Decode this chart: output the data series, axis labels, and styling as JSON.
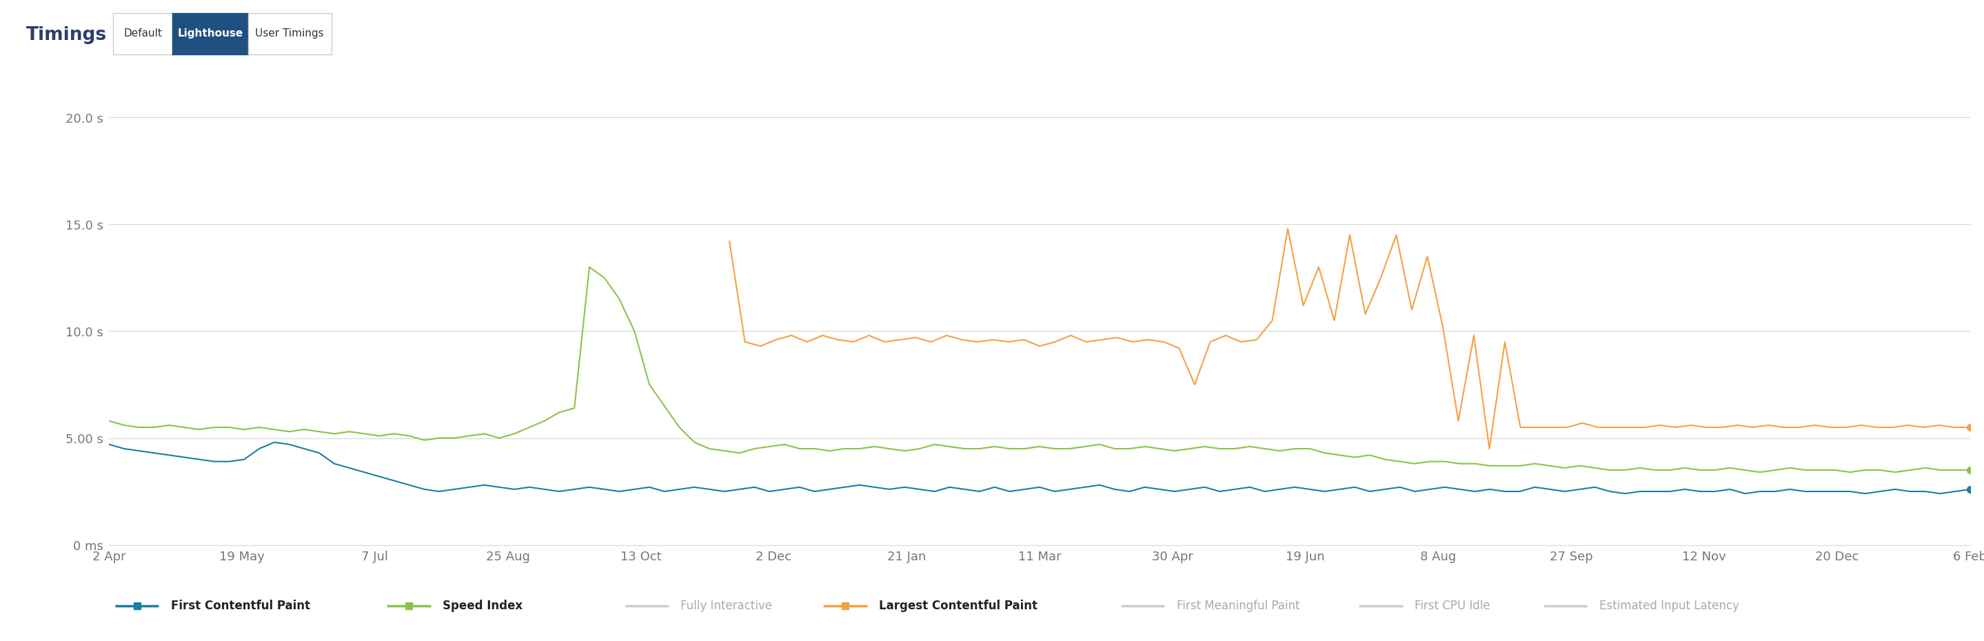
{
  "title": "Timings",
  "tab_default": "Default",
  "tab_lighthouse": "Lighthouse",
  "tab_user_timings": "User Timings",
  "background_color": "#ffffff",
  "plot_bg_color": "#ffffff",
  "grid_color": "#d8d8d8",
  "ylim": [
    0,
    21
  ],
  "yticks": [
    0,
    5,
    10,
    15,
    20
  ],
  "ytick_labels": [
    "0 ms",
    "5.00 s",
    "10.0 s",
    "15.0 s",
    "20.0 s"
  ],
  "xtick_labels": [
    "2 Apr",
    "19 May",
    "7 Jul",
    "25 Aug",
    "13 Oct",
    "2 Dec",
    "21 Jan",
    "11 Mar",
    "30 Apr",
    "19 Jun",
    "8 Aug",
    "27 Sep",
    "12 Nov",
    "20 Dec",
    "6 Feb"
  ],
  "fcp_color": "#1a7fa0",
  "si_color": "#8bc34a",
  "lcp_color": "#f5a142",
  "legend_entries": [
    {
      "label": "First Contentful Paint",
      "color": "#1a7fa0",
      "bold": true
    },
    {
      "label": "Speed Index",
      "color": "#8bc34a",
      "bold": true
    },
    {
      "label": "Fully Interactive",
      "color": "#bbbbbb",
      "bold": false
    },
    {
      "label": "Largest Contentful Paint",
      "color": "#f5a142",
      "bold": true
    },
    {
      "label": "First Meaningful Paint",
      "color": "#bbbbbb",
      "bold": false
    },
    {
      "label": "First CPU Idle",
      "color": "#bbbbbb",
      "bold": false
    },
    {
      "label": "Estimated Input Latency",
      "color": "#bbbbbb",
      "bold": false
    }
  ],
  "fcp": [
    4.7,
    4.5,
    4.4,
    4.3,
    4.2,
    4.1,
    4.0,
    3.9,
    3.9,
    4.0,
    4.5,
    4.8,
    4.7,
    4.5,
    4.3,
    3.8,
    3.6,
    3.4,
    3.2,
    3.0,
    2.8,
    2.6,
    2.5,
    2.6,
    2.7,
    2.8,
    2.7,
    2.6,
    2.7,
    2.6,
    2.5,
    2.6,
    2.7,
    2.6,
    2.5,
    2.6,
    2.7,
    2.5,
    2.6,
    2.7,
    2.6,
    2.5,
    2.6,
    2.7,
    2.5,
    2.6,
    2.7,
    2.5,
    2.6,
    2.7,
    2.8,
    2.7,
    2.6,
    2.7,
    2.6,
    2.5,
    2.7,
    2.6,
    2.5,
    2.7,
    2.5,
    2.6,
    2.7,
    2.5,
    2.6,
    2.7,
    2.8,
    2.6,
    2.5,
    2.7,
    2.6,
    2.5,
    2.6,
    2.7,
    2.5,
    2.6,
    2.7,
    2.5,
    2.6,
    2.7,
    2.6,
    2.5,
    2.6,
    2.7,
    2.5,
    2.6,
    2.7,
    2.5,
    2.6,
    2.7,
    2.6,
    2.5,
    2.6,
    2.5,
    2.5,
    2.7,
    2.6,
    2.5,
    2.6,
    2.7,
    2.5,
    2.4,
    2.5,
    2.5,
    2.5,
    2.6,
    2.5,
    2.5,
    2.6,
    2.4,
    2.5,
    2.5,
    2.6,
    2.5,
    2.5,
    2.5,
    2.5,
    2.4,
    2.5,
    2.6,
    2.5,
    2.5,
    2.4,
    2.5,
    2.6
  ],
  "si": [
    5.8,
    5.6,
    5.5,
    5.5,
    5.6,
    5.5,
    5.4,
    5.5,
    5.5,
    5.4,
    5.5,
    5.4,
    5.3,
    5.4,
    5.3,
    5.2,
    5.3,
    5.2,
    5.1,
    5.2,
    5.1,
    4.9,
    5.0,
    5.0,
    5.1,
    5.2,
    5.0,
    5.2,
    5.5,
    5.8,
    6.2,
    6.4,
    13.0,
    12.5,
    11.5,
    10.0,
    7.5,
    6.5,
    5.5,
    4.8,
    4.5,
    4.4,
    4.3,
    4.5,
    4.6,
    4.7,
    4.5,
    4.5,
    4.4,
    4.5,
    4.5,
    4.6,
    4.5,
    4.4,
    4.5,
    4.7,
    4.6,
    4.5,
    4.5,
    4.6,
    4.5,
    4.5,
    4.6,
    4.5,
    4.5,
    4.6,
    4.7,
    4.5,
    4.5,
    4.6,
    4.5,
    4.4,
    4.5,
    4.6,
    4.5,
    4.5,
    4.6,
    4.5,
    4.4,
    4.5,
    4.5,
    4.3,
    4.2,
    4.1,
    4.2,
    4.0,
    3.9,
    3.8,
    3.9,
    3.9,
    3.8,
    3.8,
    3.7,
    3.7,
    3.7,
    3.8,
    3.7,
    3.6,
    3.7,
    3.6,
    3.5,
    3.5,
    3.6,
    3.5,
    3.5,
    3.6,
    3.5,
    3.5,
    3.6,
    3.5,
    3.4,
    3.5,
    3.6,
    3.5,
    3.5,
    3.5,
    3.4,
    3.5,
    3.5,
    3.4,
    3.5,
    3.6,
    3.5,
    3.5,
    3.5
  ],
  "lcp": [
    null,
    null,
    null,
    null,
    null,
    null,
    null,
    null,
    null,
    null,
    null,
    null,
    null,
    null,
    null,
    null,
    null,
    null,
    null,
    null,
    null,
    null,
    null,
    null,
    null,
    null,
    null,
    null,
    null,
    null,
    null,
    null,
    null,
    null,
    null,
    null,
    null,
    null,
    null,
    null,
    14.2,
    9.5,
    9.3,
    9.6,
    9.8,
    9.5,
    9.8,
    9.6,
    9.5,
    9.8,
    9.5,
    9.6,
    9.7,
    9.5,
    9.8,
    9.6,
    9.5,
    9.6,
    9.5,
    9.6,
    9.3,
    9.5,
    9.8,
    9.5,
    9.6,
    9.7,
    9.5,
    9.6,
    9.5,
    9.2,
    7.5,
    9.5,
    9.8,
    9.5,
    9.6,
    10.5,
    14.8,
    11.2,
    13.0,
    10.5,
    14.5,
    10.8,
    12.5,
    14.5,
    11.0,
    13.5,
    10.2,
    5.8,
    9.8,
    4.5,
    9.5,
    5.5,
    5.5,
    5.5,
    5.5,
    5.7,
    5.5,
    5.5,
    5.5,
    5.5,
    5.6,
    5.5,
    5.6,
    5.5,
    5.5,
    5.6,
    5.5,
    5.6,
    5.5,
    5.5,
    5.6,
    5.5,
    5.5,
    5.6,
    5.5,
    5.5,
    5.6,
    5.5,
    5.6,
    5.5,
    5.5
  ]
}
